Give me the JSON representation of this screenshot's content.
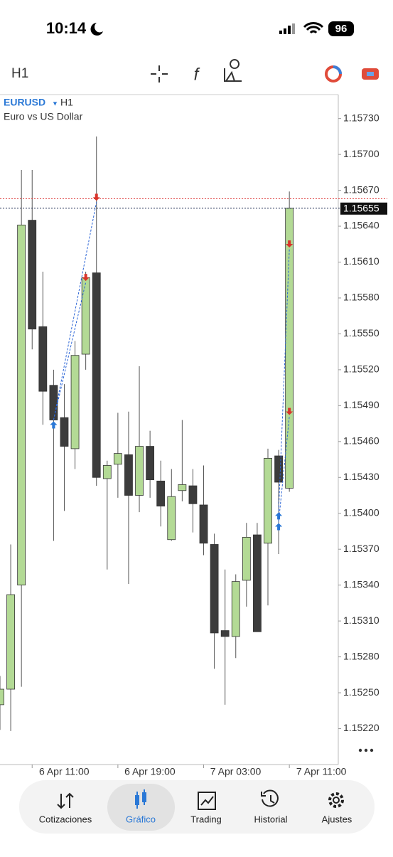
{
  "status_bar": {
    "time": "10:14",
    "battery": "96"
  },
  "toolbar": {
    "timeframe": "H1"
  },
  "chart_data": {
    "type": "candlestick",
    "symbol": "EURUSD",
    "timeframe": "H1",
    "description": "Euro vs US Dollar",
    "categories": [
      null,
      null,
      null,
      "6 Apr 11:00",
      null,
      null,
      null,
      null,
      null,
      null,
      null,
      "6 Apr 19:00",
      null,
      null,
      null,
      null,
      null,
      null,
      null,
      "7 Apr 03:00",
      null,
      null,
      null,
      null,
      null,
      null,
      null,
      "7 Apr 11:00"
    ],
    "open": [
      1.1524,
      1.15253,
      1.1534,
      1.15645,
      1.15556,
      1.15507,
      1.1548,
      1.15454,
      1.15533,
      1.15601,
      1.15429,
      1.15441,
      1.15449,
      1.15415,
      1.15456,
      1.15427,
      1.15378,
      1.15419,
      1.15423,
      1.15407,
      1.15374,
      1.15302,
      1.15297,
      1.15344,
      1.15382,
      1.15375,
      1.15448,
      1.15421
    ],
    "high": [
      1.15264,
      1.15374,
      1.15687,
      1.15687,
      1.15602,
      1.1552,
      1.15508,
      1.15544,
      1.15602,
      1.15715,
      1.15444,
      1.15484,
      1.15485,
      1.15523,
      1.15469,
      1.15444,
      1.15437,
      1.15478,
      1.15437,
      1.1544,
      1.15383,
      1.15353,
      1.15349,
      1.15392,
      1.15392,
      1.15454,
      1.15453,
      1.15669
    ],
    "low": [
      1.15219,
      1.15218,
      1.15255,
      1.15537,
      1.15474,
      1.15377,
      1.15402,
      1.15437,
      1.1552,
      1.15423,
      1.15353,
      1.15413,
      1.15341,
      1.15401,
      1.15413,
      1.15389,
      1.15377,
      1.1541,
      1.15384,
      1.15365,
      1.1527,
      1.1524,
      1.15279,
      1.15322,
      1.15301,
      1.15323,
      1.15366,
      1.15418
    ],
    "close": [
      1.15253,
      1.15332,
      1.15641,
      1.15554,
      1.15502,
      1.15478,
      1.15456,
      1.15532,
      1.15597,
      1.1543,
      1.1544,
      1.1545,
      1.15415,
      1.15456,
      1.15428,
      1.15406,
      1.15414,
      1.15424,
      1.15408,
      1.15375,
      1.153,
      1.15297,
      1.15343,
      1.1538,
      1.15301,
      1.15446,
      1.15426,
      1.15655
    ],
    "up_color": "#b3da95",
    "down_color": "#3c3c3c",
    "current_price": 1.15655,
    "ask_price": 1.15663,
    "trades": [
      {
        "open": 1.15478,
        "close": 1.1566
      },
      {
        "open": 1.15478,
        "close": 1.15593
      },
      {
        "open": 1.15402,
        "close": 1.15621
      },
      {
        "open": 1.15393,
        "close": 1.15481
      }
    ],
    "ylim": [
      1.1519,
      1.1575
    ],
    "yticks": [
      {
        "value": 1.1573,
        "label": "1.15730"
      },
      {
        "value": 1.157,
        "label": "1.15700"
      },
      {
        "value": 1.1567,
        "label": "1.15670"
      },
      {
        "value": 1.1564,
        "label": "1.15640"
      },
      {
        "value": 1.1561,
        "label": "1.15610"
      },
      {
        "value": 1.1558,
        "label": "1.15580"
      },
      {
        "value": 1.1555,
        "label": "1.15550"
      },
      {
        "value": 1.1552,
        "label": "1.15520"
      },
      {
        "value": 1.1549,
        "label": "1.15490"
      },
      {
        "value": 1.1546,
        "label": "1.15460"
      },
      {
        "value": 1.1543,
        "label": "1.15430"
      },
      {
        "value": 1.154,
        "label": "1.15400"
      },
      {
        "value": 1.1537,
        "label": "1.15370"
      },
      {
        "value": 1.1534,
        "label": "1.15340"
      },
      {
        "value": 1.1531,
        "label": "1.15310"
      },
      {
        "value": 1.1528,
        "label": "1.15280"
      },
      {
        "value": 1.1525,
        "label": "1.15250"
      },
      {
        "value": 1.1522,
        "label": "1.15220"
      }
    ]
  },
  "nav": [
    "Cotizaciones",
    "Gráfico",
    "Trading",
    "Historial",
    "Ajustes"
  ]
}
